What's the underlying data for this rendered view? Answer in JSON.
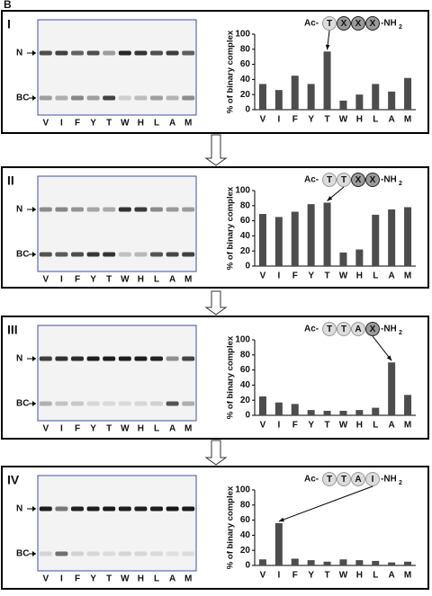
{
  "figure_label": "B",
  "panels": [
    {
      "label": "I",
      "gel_bands": [
        "N",
        "BC"
      ],
      "peptide": {
        "prefix": "Ac-",
        "residues": [
          "T",
          "X",
          "X",
          "X"
        ],
        "suffix": "-NH",
        "suffix_sub": "2"
      }
    },
    {
      "label": "II",
      "gel_bands": [
        "N",
        "BC"
      ],
      "peptide": {
        "prefix": "Ac-",
        "residues": [
          "T",
          "T",
          "X",
          "X"
        ],
        "suffix": "-NH",
        "suffix_sub": "2"
      }
    },
    {
      "label": "III",
      "gel_bands": [
        "N",
        "BC"
      ],
      "peptide": {
        "prefix": "Ac-",
        "residues": [
          "T",
          "T",
          "A",
          "X"
        ],
        "suffix": "-NH",
        "suffix_sub": "2"
      }
    },
    {
      "label": "IV",
      "gel_bands": [
        "N",
        "BC"
      ],
      "peptide": {
        "prefix": "Ac-",
        "residues": [
          "T",
          "T",
          "A",
          "I"
        ],
        "suffix": "-NH",
        "suffix_sub": "2"
      }
    }
  ],
  "chart_data": [
    {
      "type": "bar",
      "y_label": "% of binary complex",
      "categories": [
        "V",
        "I",
        "F",
        "Y",
        "T",
        "W",
        "H",
        "L",
        "A",
        "M"
      ],
      "values": [
        34,
        26,
        45,
        34,
        77,
        12,
        20,
        34,
        24,
        42
      ],
      "color": "#4d4d4d",
      "ylim": [
        0,
        100
      ],
      "yticks": [
        0,
        20,
        40,
        60,
        80,
        100
      ]
    },
    {
      "type": "bar",
      "y_label": "% of binary complex",
      "categories": [
        "V",
        "I",
        "F",
        "Y",
        "T",
        "W",
        "H",
        "L",
        "A",
        "M"
      ],
      "values": [
        69,
        65,
        72,
        82,
        84,
        18,
        22,
        68,
        75,
        78
      ],
      "color": "#4d4d4d",
      "ylim": [
        0,
        100
      ],
      "yticks": [
        0,
        20,
        40,
        60,
        80,
        100
      ]
    },
    {
      "type": "bar",
      "y_label": "% of binary complex",
      "categories": [
        "V",
        "I",
        "F",
        "Y",
        "T",
        "W",
        "H",
        "L",
        "A",
        "M"
      ],
      "values": [
        25,
        17,
        15,
        7,
        6,
        6,
        7,
        10,
        70,
        27
      ],
      "color": "#4d4d4d",
      "ylim": [
        0,
        100
      ],
      "yticks": [
        0,
        20,
        40,
        60,
        80,
        100
      ]
    },
    {
      "type": "bar",
      "y_label": "% of binary complex",
      "categories": [
        "V",
        "I",
        "F",
        "Y",
        "T",
        "W",
        "H",
        "L",
        "A",
        "M"
      ],
      "values": [
        8,
        56,
        9,
        7,
        5,
        8,
        7,
        6,
        4,
        5
      ],
      "color": "#4d4d4d",
      "ylim": [
        0,
        100
      ],
      "yticks": [
        0,
        20,
        40,
        60,
        80,
        100
      ]
    }
  ]
}
